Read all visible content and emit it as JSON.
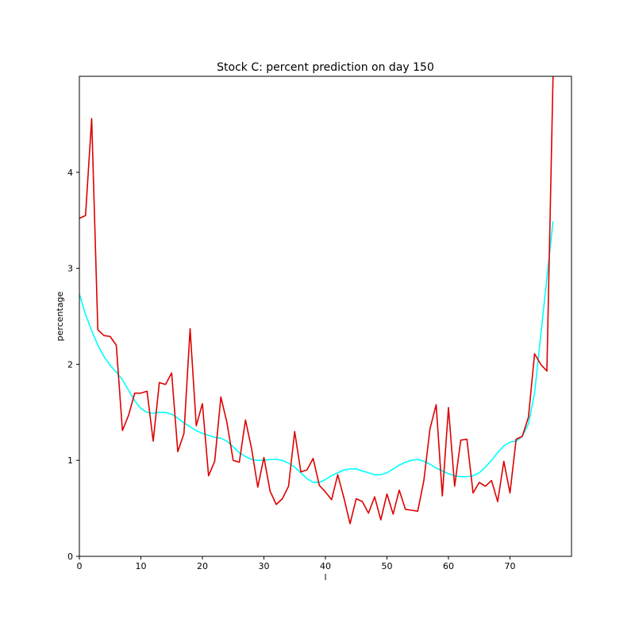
{
  "chart_data": {
    "type": "line",
    "title": "Stock C: percent prediction on day 150",
    "xlabel": "l",
    "ylabel": "percentage",
    "xlim": [
      0,
      80
    ],
    "ylim": [
      0,
      5
    ],
    "xticks": [
      0,
      10,
      20,
      30,
      40,
      50,
      60,
      70
    ],
    "yticks": [
      0,
      1,
      2,
      3,
      4
    ],
    "grid": false,
    "legend": "none",
    "series": [
      {
        "color": "#00ffff",
        "x": [
          0,
          1,
          2,
          3,
          4,
          5,
          6,
          7,
          8,
          9,
          10,
          11,
          12,
          13,
          14,
          15,
          16,
          17,
          18,
          19,
          20,
          21,
          22,
          23,
          24,
          25,
          26,
          27,
          28,
          29,
          30,
          31,
          32,
          33,
          34,
          35,
          36,
          37,
          38,
          39,
          40,
          41,
          42,
          43,
          44,
          45,
          46,
          47,
          48,
          49,
          50,
          51,
          52,
          53,
          54,
          55,
          56,
          57,
          58,
          59,
          60,
          61,
          62,
          63,
          64,
          65,
          66,
          67,
          68,
          69,
          70,
          71,
          72,
          73,
          74,
          75,
          76,
          77
        ],
        "y": [
          2.73,
          2.52,
          2.35,
          2.2,
          2.08,
          1.99,
          1.92,
          1.84,
          1.73,
          1.62,
          1.54,
          1.5,
          1.49,
          1.5,
          1.5,
          1.48,
          1.44,
          1.39,
          1.35,
          1.31,
          1.28,
          1.26,
          1.24,
          1.23,
          1.2,
          1.14,
          1.08,
          1.04,
          1.01,
          1.0,
          1.0,
          1.01,
          1.01,
          1.0,
          0.97,
          0.93,
          0.87,
          0.81,
          0.77,
          0.77,
          0.8,
          0.84,
          0.87,
          0.9,
          0.91,
          0.91,
          0.89,
          0.87,
          0.85,
          0.85,
          0.87,
          0.91,
          0.95,
          0.98,
          1.0,
          1.01,
          0.99,
          0.96,
          0.92,
          0.89,
          0.86,
          0.84,
          0.83,
          0.83,
          0.84,
          0.87,
          0.93,
          1.0,
          1.08,
          1.15,
          1.19,
          1.2,
          1.25,
          1.38,
          1.7,
          2.3,
          2.9,
          3.49
        ]
      },
      {
        "color": "#dd0000",
        "x": [
          0,
          1,
          2,
          3,
          4,
          5,
          6,
          7,
          8,
          9,
          10,
          11,
          12,
          13,
          14,
          15,
          16,
          17,
          18,
          19,
          20,
          21,
          22,
          23,
          24,
          25,
          26,
          27,
          28,
          29,
          30,
          31,
          32,
          33,
          34,
          35,
          36,
          37,
          38,
          39,
          40,
          41,
          42,
          43,
          44,
          45,
          46,
          47,
          48,
          49,
          50,
          51,
          52,
          53,
          54,
          55,
          56,
          57,
          58,
          59,
          60,
          61,
          62,
          63,
          64,
          65,
          66,
          67,
          68,
          69,
          70,
          71,
          72,
          73,
          74,
          75,
          76,
          77
        ],
        "y": [
          3.52,
          3.55,
          4.56,
          2.36,
          2.3,
          2.29,
          2.2,
          1.31,
          1.47,
          1.7,
          1.7,
          1.72,
          1.2,
          1.81,
          1.79,
          1.91,
          1.09,
          1.28,
          2.37,
          1.36,
          1.59,
          0.84,
          0.99,
          1.66,
          1.39,
          1.0,
          0.98,
          1.42,
          1.12,
          0.72,
          1.03,
          0.68,
          0.54,
          0.6,
          0.73,
          1.3,
          0.88,
          0.9,
          1.02,
          0.74,
          0.67,
          0.59,
          0.85,
          0.61,
          0.34,
          0.6,
          0.57,
          0.45,
          0.62,
          0.38,
          0.65,
          0.44,
          0.69,
          0.49,
          0.48,
          0.47,
          0.79,
          1.33,
          1.58,
          0.63,
          1.55,
          0.73,
          1.21,
          1.22,
          0.66,
          0.77,
          0.73,
          0.79,
          0.57,
          0.99,
          0.66,
          1.22,
          1.25,
          1.45,
          2.11,
          2.0,
          1.93,
          5.0
        ]
      }
    ]
  }
}
